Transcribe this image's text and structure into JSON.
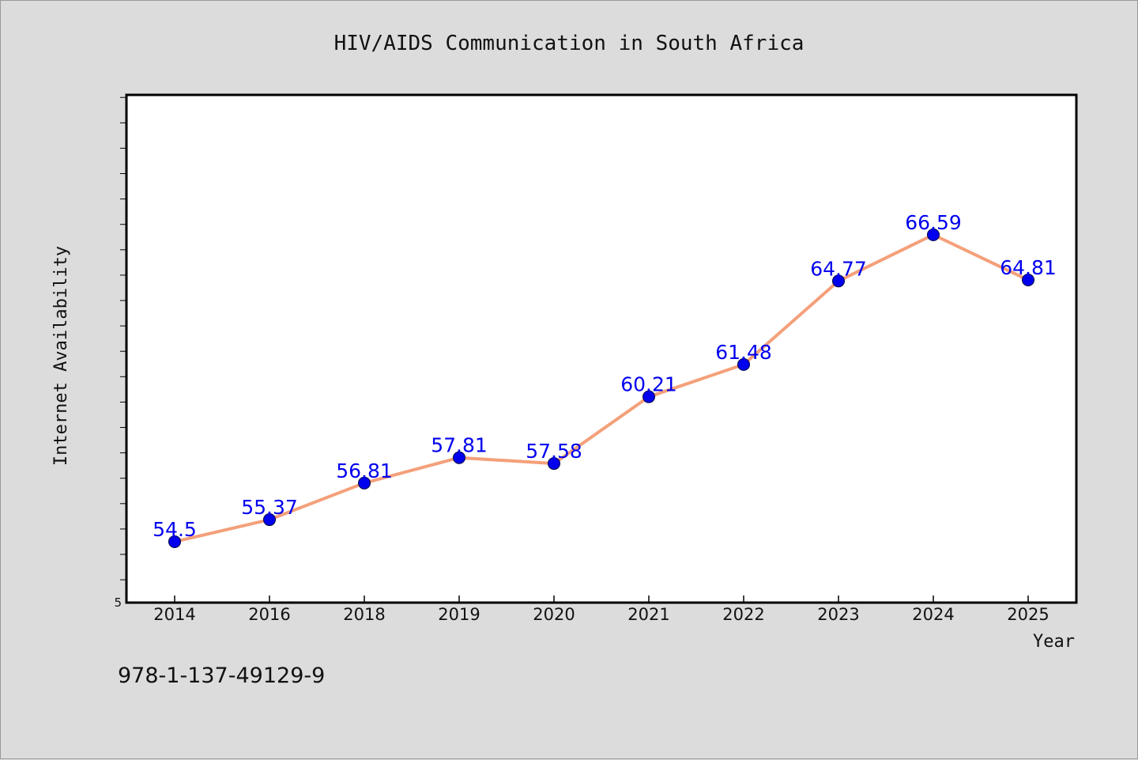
{
  "chart_data": {
    "type": "line",
    "title": "HIV/AIDS Communication in South Africa",
    "xlabel": "Year",
    "ylabel": "Internet Availability",
    "categories": [
      "2014",
      "2016",
      "2018",
      "2019",
      "2020",
      "2021",
      "2022",
      "2023",
      "2024",
      "2025"
    ],
    "series": [
      {
        "values": [
          54.5,
          55.37,
          56.81,
          57.81,
          57.58,
          60.21,
          61.48,
          64.77,
          66.59,
          64.81
        ],
        "value_labels": [
          "54.5",
          "55.37",
          "56.81",
          "57.81",
          "57.58",
          "60.21",
          "61.48",
          "64.77",
          "66.59",
          "64.81"
        ],
        "line_color": "#f4a07a",
        "marker_color": "#0000ee"
      }
    ],
    "ylim": [
      52.1,
      72.1
    ],
    "y_tick_labels": [
      "5"
    ],
    "y_minor_step": 1,
    "grid": false,
    "legend": "none"
  },
  "footer_text": "978-1-137-49129-9",
  "colors": {
    "background": "#dcdcdc",
    "plot_background": "#ffffff",
    "axis": "#000000"
  }
}
